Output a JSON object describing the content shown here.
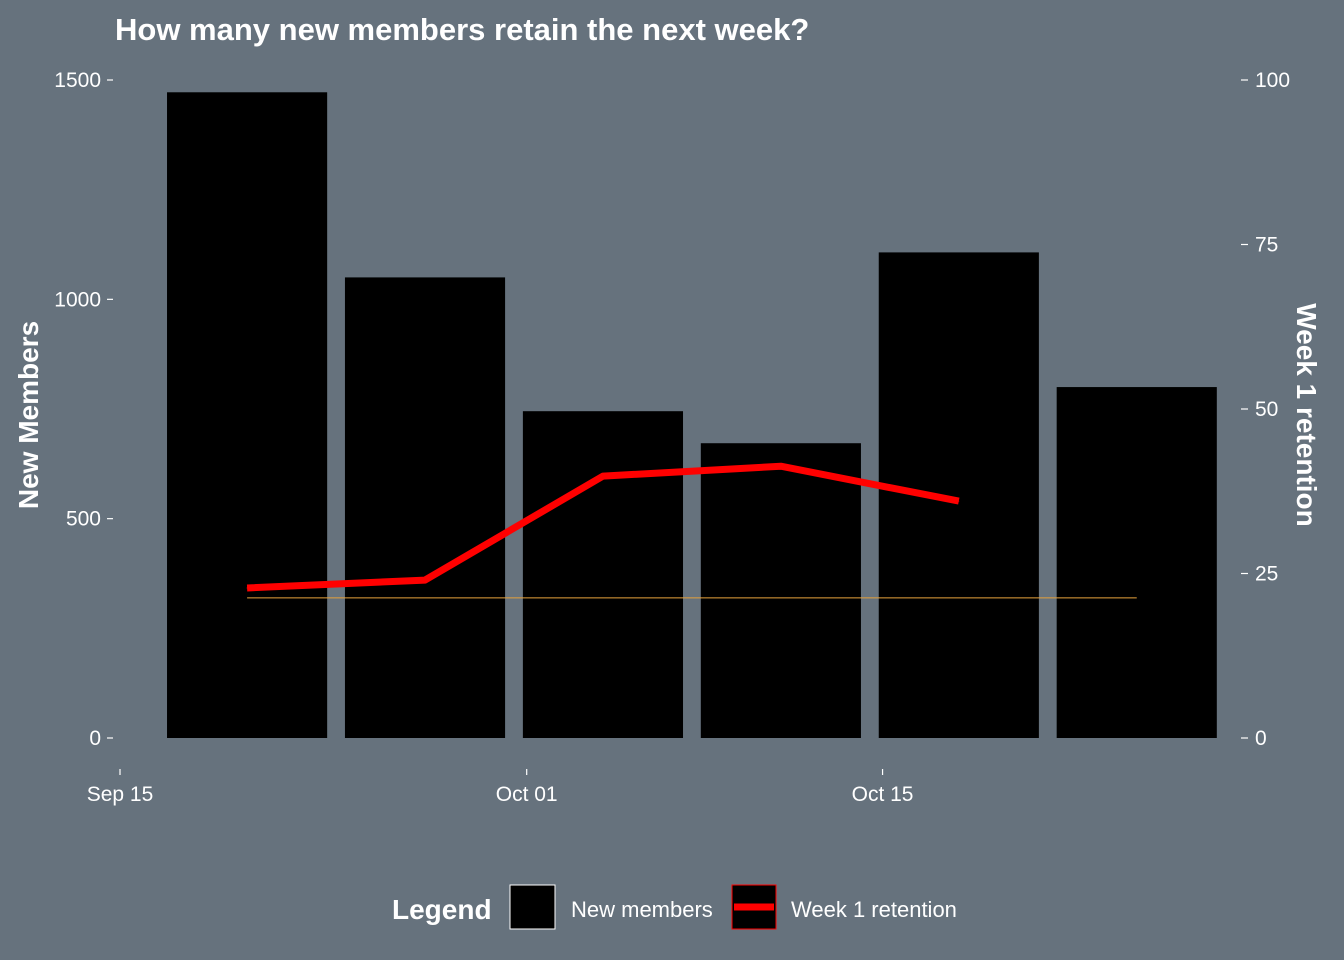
{
  "chart_data": {
    "type": "bar",
    "title": "How many new members retain the next week?",
    "ylabel": "New Members",
    "y2label": "Week 1 retention",
    "ylim": [
      0,
      1500
    ],
    "y2lim": [
      0,
      100
    ],
    "yticks": [
      0,
      500,
      1000,
      1500
    ],
    "y2ticks": [
      0,
      25,
      50,
      75,
      100
    ],
    "x_domain": [
      "2018-09-15",
      "2018-10-28"
    ],
    "xticks": [
      {
        "date": "2018-09-15",
        "label": "Sep 15"
      },
      {
        "date": "2018-10-01",
        "label": "Oct 01"
      },
      {
        "date": "2018-10-15",
        "label": "Oct 15"
      }
    ],
    "bar_width_days": 6.3,
    "bars": [
      {
        "week": "2018-09-20",
        "value": 1472
      },
      {
        "week": "2018-09-27",
        "value": 1050
      },
      {
        "week": "2018-10-04",
        "value": 745
      },
      {
        "week": "2018-10-11",
        "value": 672
      },
      {
        "week": "2018-10-18",
        "value": 1107
      },
      {
        "week": "2018-10-25",
        "value": 800
      }
    ],
    "series": [
      {
        "name": "Week 1 retention",
        "color": "#ff0000",
        "points": [
          {
            "x": "2018-09-20",
            "y": 22.8
          },
          {
            "x": "2018-09-27",
            "y": 24.0
          },
          {
            "x": "2018-10-04",
            "y": 39.8
          },
          {
            "x": "2018-10-11",
            "y": 41.3
          },
          {
            "x": "2018-10-18",
            "y": 36.0
          }
        ]
      }
    ],
    "reference_line": {
      "y": 21.3,
      "x_start": "2018-09-20",
      "x_end": "2018-10-25",
      "color": "#e8a33c"
    },
    "legend": {
      "title": "Legend",
      "position": "bottom",
      "items": [
        {
          "label": "New members",
          "type": "bar",
          "color": "#000000"
        },
        {
          "label": "Week 1 retention",
          "type": "line",
          "color": "#ff0000"
        }
      ]
    },
    "grid": false
  },
  "colors": {
    "background": "#66727d",
    "bars": "#000000",
    "line": "#ff0000",
    "text": "#ffffff"
  }
}
